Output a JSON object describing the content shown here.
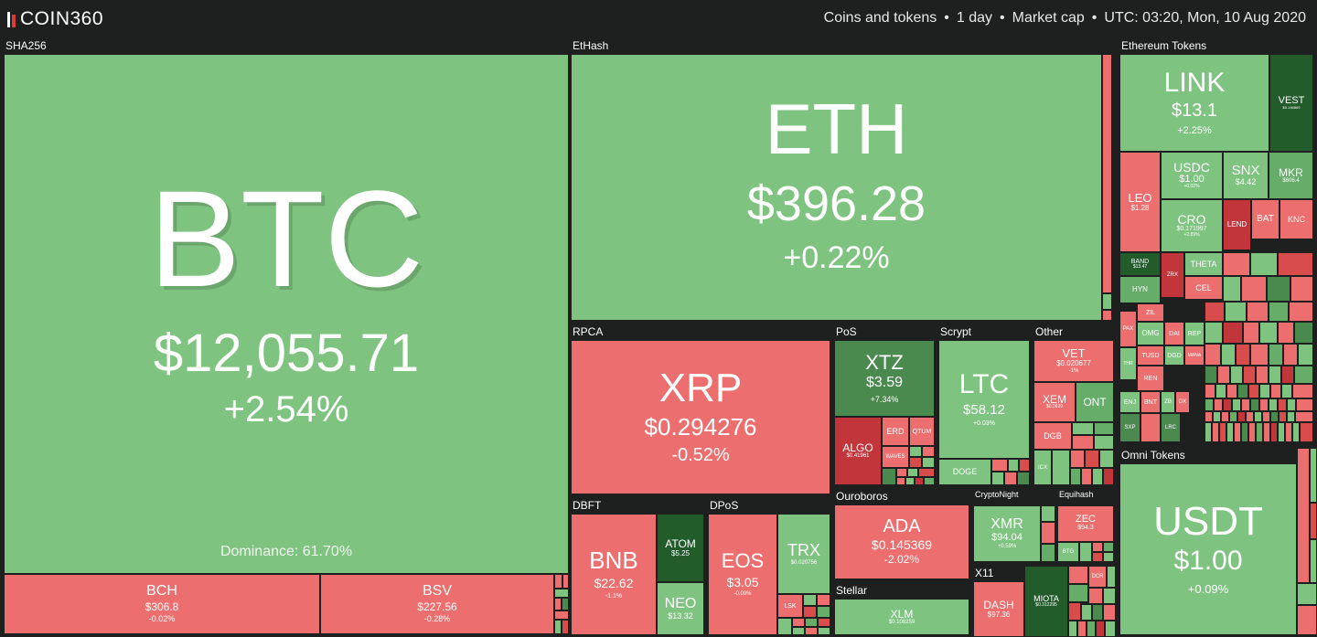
{
  "header": {
    "logo_text": "COIN360",
    "crumbs": [
      "Coins and tokens",
      "1 day",
      "Market cap",
      "UTC: 03:20, Mon, 10 Aug 2020"
    ],
    "separator": "•"
  },
  "sectors": {
    "sha256": "SHA256",
    "ethash": "EtHash",
    "eth_tokens": "Ethereum Tokens",
    "rpca": "RPCA",
    "pos": "PoS",
    "scrypt": "Scrypt",
    "other": "Other",
    "dbft": "DBFT",
    "dpos": "DPoS",
    "ouroboros": "Ouroboros",
    "cryptonight": "CryptoNight",
    "equihash": "Equihash",
    "omni": "Omni Tokens",
    "stellar": "Stellar",
    "x11": "X11"
  },
  "coins": {
    "btc": {
      "symbol": "BTC",
      "price": "$12,055.71",
      "change": "+2.54%",
      "dominance": "Dominance: 61.70%"
    },
    "bch": {
      "symbol": "BCH",
      "price": "$306.8",
      "change": "-0.02%"
    },
    "bsv": {
      "symbol": "BSV",
      "price": "$227.56",
      "change": "-0.28%"
    },
    "eth": {
      "symbol": "ETH",
      "price": "$396.28",
      "change": "+0.22%"
    },
    "link": {
      "symbol": "LINK",
      "price": "$13.1",
      "change": "+2.25%"
    },
    "vest": {
      "symbol": "VEST",
      "price": "$0.146869"
    },
    "leo": {
      "symbol": "LEO",
      "price": "$1.28"
    },
    "usdc": {
      "symbol": "USDC",
      "price": "$1.00",
      "change": "+0.02%"
    },
    "snx": {
      "symbol": "SNX",
      "price": "$4.42"
    },
    "mkr": {
      "symbol": "MKR",
      "price": "$606.4"
    },
    "cro": {
      "symbol": "CRO",
      "price": "$0.171997",
      "change": "+2.89%"
    },
    "lend": {
      "symbol": "LEND"
    },
    "bat": {
      "symbol": "BAT"
    },
    "knc": {
      "symbol": "KNC"
    },
    "band": {
      "symbol": "BAND",
      "price": "$13.47"
    },
    "zrx": {
      "symbol": "ZRX"
    },
    "theta": {
      "symbol": "THETA"
    },
    "hyn": {
      "symbol": "HYN"
    },
    "cel": {
      "symbol": "CEL"
    },
    "zil": {
      "symbol": "ZIL"
    },
    "pax": {
      "symbol": "PAX"
    },
    "omg": {
      "symbol": "OMG"
    },
    "dai": {
      "symbol": "DAI"
    },
    "rep": {
      "symbol": "REP"
    },
    "tusd": {
      "symbol": "TUSD"
    },
    "dgd": {
      "symbol": "DGD"
    },
    "mana": {
      "symbol": "MANA"
    },
    "thr": {
      "symbol": "THR"
    },
    "ren": {
      "symbol": "REN"
    },
    "enj": {
      "symbol": "ENJ"
    },
    "bnt": {
      "symbol": "BNT"
    },
    "zb": {
      "symbol": "ZB"
    },
    "dx": {
      "symbol": "DX"
    },
    "skp": {
      "symbol": "SXP"
    },
    "lrc": {
      "symbol": "LRC"
    },
    "xrp": {
      "symbol": "XRP",
      "price": "$0.294276",
      "change": "-0.52%"
    },
    "xtz": {
      "symbol": "XTZ",
      "price": "$3.59",
      "change": "+7.34%"
    },
    "algo": {
      "symbol": "ALGO",
      "price": "$0.41961"
    },
    "erd": {
      "symbol": "ERD"
    },
    "qtum": {
      "symbol": "QTUM"
    },
    "waves": {
      "symbol": "WAVES"
    },
    "ltc": {
      "symbol": "LTC",
      "price": "$58.12",
      "change": "+0.03%"
    },
    "doge": {
      "symbol": "DOGE"
    },
    "vet": {
      "symbol": "VET",
      "price": "$0.020677",
      "change": "-1%"
    },
    "xem": {
      "symbol": "XEM",
      "price": "$0.0629"
    },
    "ont": {
      "symbol": "ONT"
    },
    "dgb": {
      "symbol": "DGB"
    },
    "icx": {
      "symbol": "ICX"
    },
    "bnb": {
      "symbol": "BNB",
      "price": "$22.62",
      "change": "-1.1%"
    },
    "atom": {
      "symbol": "ATOM",
      "price": "$5.25"
    },
    "neo": {
      "symbol": "NEO",
      "price": "$13.32"
    },
    "eos": {
      "symbol": "EOS",
      "price": "$3.05",
      "change": "-0.09%"
    },
    "trx": {
      "symbol": "TRX",
      "price": "$0.020756"
    },
    "lsk": {
      "symbol": "LSK"
    },
    "ada": {
      "symbol": "ADA",
      "price": "$0.145369",
      "change": "-2.02%"
    },
    "xlm": {
      "symbol": "XLM",
      "price": "$0.106259"
    },
    "xmr": {
      "symbol": "XMR",
      "price": "$94.04",
      "change": "+0.59%"
    },
    "zec": {
      "symbol": "ZEC",
      "price": "$94.3"
    },
    "btg": {
      "symbol": "BTG"
    },
    "dash": {
      "symbol": "DASH",
      "price": "$97.36"
    },
    "miota": {
      "symbol": "MIOTA",
      "price": "$0.312295"
    },
    "dcr": {
      "symbol": "DCR"
    },
    "usdt": {
      "symbol": "USDT",
      "price": "$1.00",
      "change": "+0.09%"
    }
  }
}
